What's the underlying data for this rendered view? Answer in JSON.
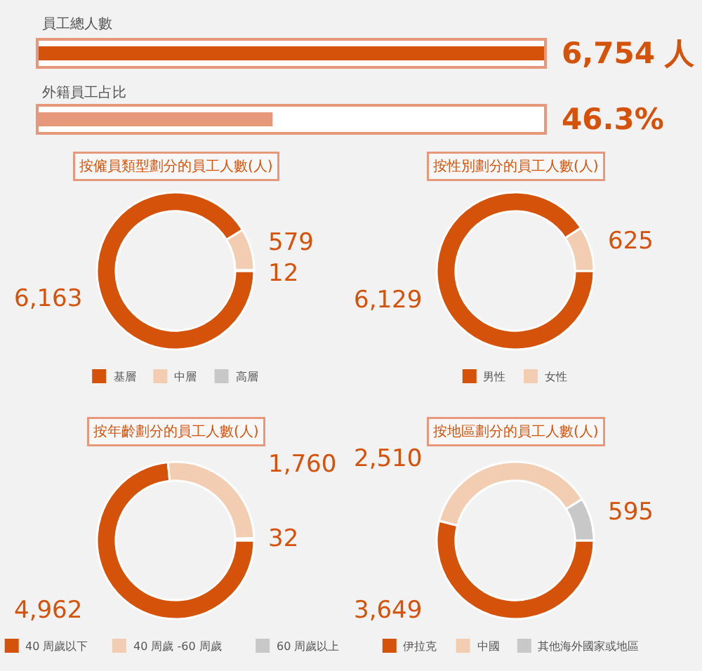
{
  "chart_data": [
    {
      "type": "other",
      "title": "員工總人數",
      "values": [
        6754
      ],
      "color": "#d4520a",
      "value_labels": [
        "6,754 人"
      ]
    },
    {
      "type": "other",
      "title": "外籍員工占比",
      "values": [
        46.3
      ],
      "color": "#e8987a",
      "value_labels": [
        "46.3%"
      ]
    },
    {
      "type": "donut",
      "title": "按僱員類型劃分的員工人數(人)",
      "categories": [
        "基層",
        "中層",
        "高層"
      ],
      "values": [
        6163,
        579,
        12
      ],
      "colors": [
        "#d4520a",
        "#f2cdb2",
        "#c8c8c8"
      ],
      "value_labels": [
        "6,163",
        "579",
        "12"
      ],
      "legend": "bottom"
    },
    {
      "type": "donut",
      "title": "按性別劃分的員工人數(人)",
      "categories": [
        "男性",
        "女性"
      ],
      "values": [
        6129,
        625
      ],
      "colors": [
        "#d4520a",
        "#f2cdb2"
      ],
      "value_labels": [
        "6,129",
        "625"
      ],
      "legend": "bottom"
    },
    {
      "type": "donut",
      "title": "按年齡劃分的員工人數(人)",
      "categories": [
        "40 周歲以下",
        "40 周歲 -60 周歲",
        "60 周歲以上"
      ],
      "values": [
        4962,
        1760,
        32
      ],
      "colors": [
        "#d4520a",
        "#f2cdb2",
        "#c8c8c8"
      ],
      "value_labels": [
        "4,962",
        "1,760",
        "32"
      ],
      "legend": "bottom"
    },
    {
      "type": "donut",
      "title": "按地區劃分的員工人數(人)",
      "categories": [
        "伊拉克",
        "中國",
        "其他海外國家或地區"
      ],
      "values": [
        3649,
        2510,
        595
      ],
      "colors": [
        "#d4520a",
        "#f2cdb2",
        "#c8c8c8"
      ],
      "value_labels": [
        "3,649",
        "2,510",
        "595"
      ],
      "legend": "bottom"
    }
  ]
}
